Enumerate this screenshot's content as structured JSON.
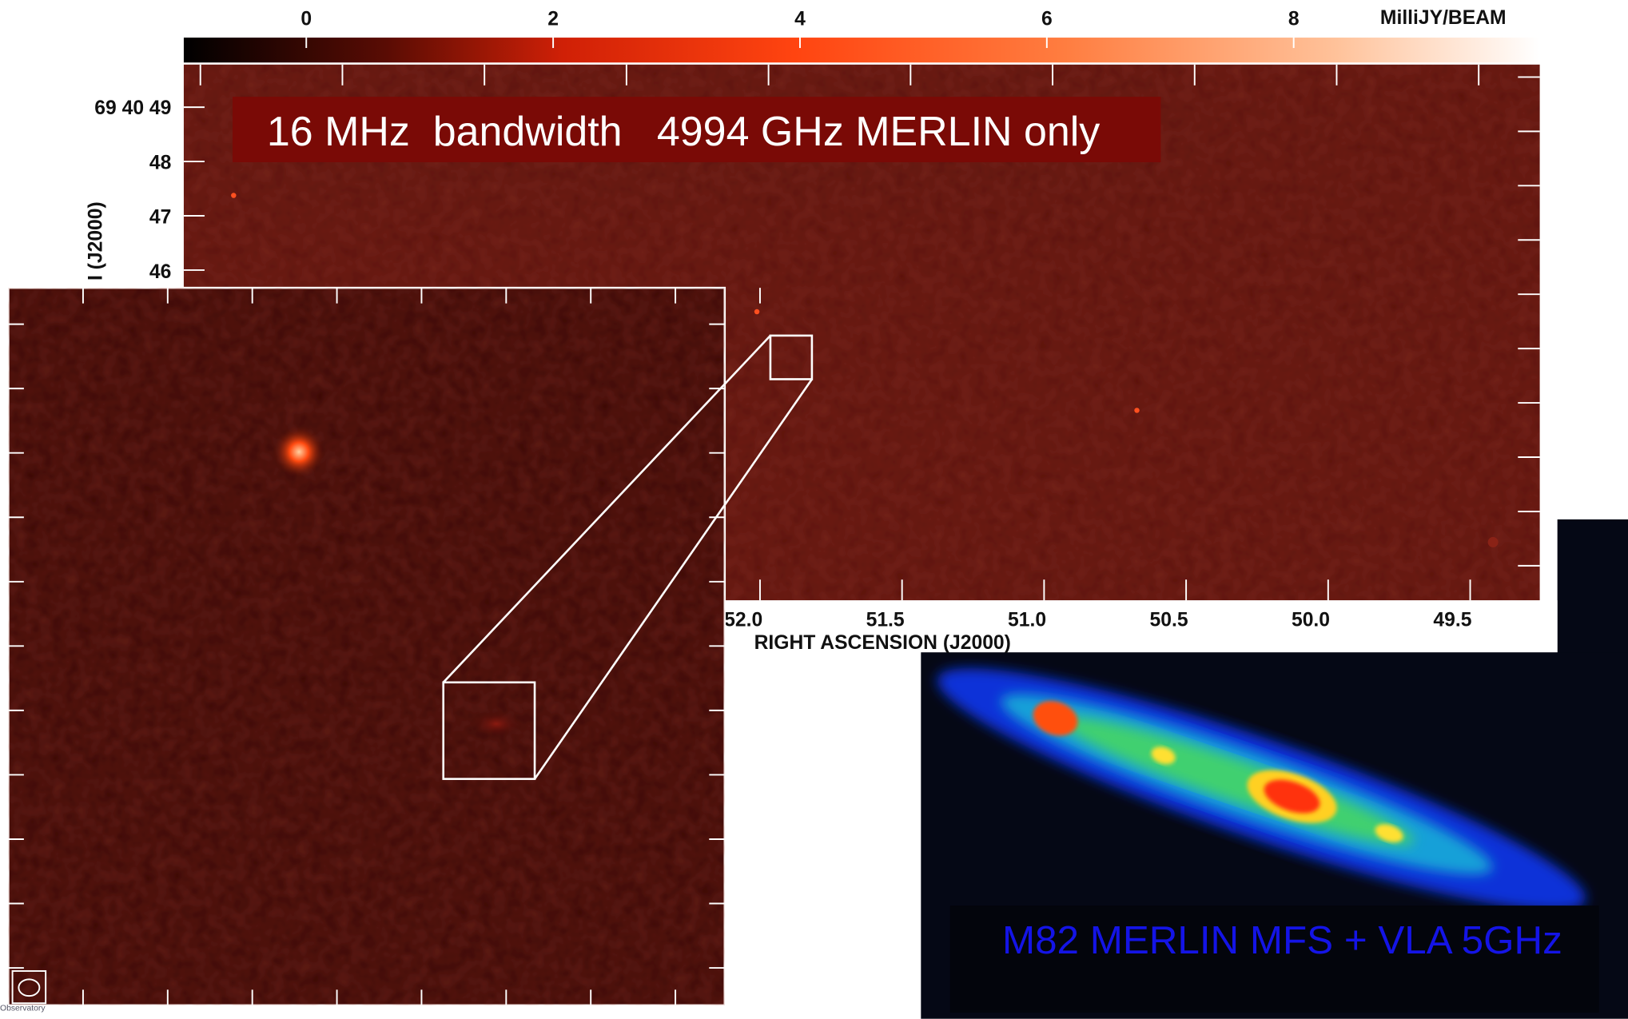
{
  "colorbar": {
    "ticks": [
      0,
      2,
      4,
      6,
      8
    ],
    "unit": "MilliJY/BEAM"
  },
  "main_image": {
    "title": "16 MHz  bandwidth   4994 GHz MERLIN only",
    "y_axis_title": "I (J2000)",
    "y_ticks": [
      "69 40 49",
      "48",
      "47",
      "46"
    ],
    "x_ticks": [
      "52.0",
      "51.5",
      "51.0",
      "50.5",
      "50.0",
      "49.5"
    ],
    "x_axis_title": "RIGHT ASCENSION (J2000)"
  },
  "m82_panel": {
    "caption": "M82 MERLIN MFS + VLA 5GHz"
  },
  "footer": {
    "credit": "Observatory"
  }
}
